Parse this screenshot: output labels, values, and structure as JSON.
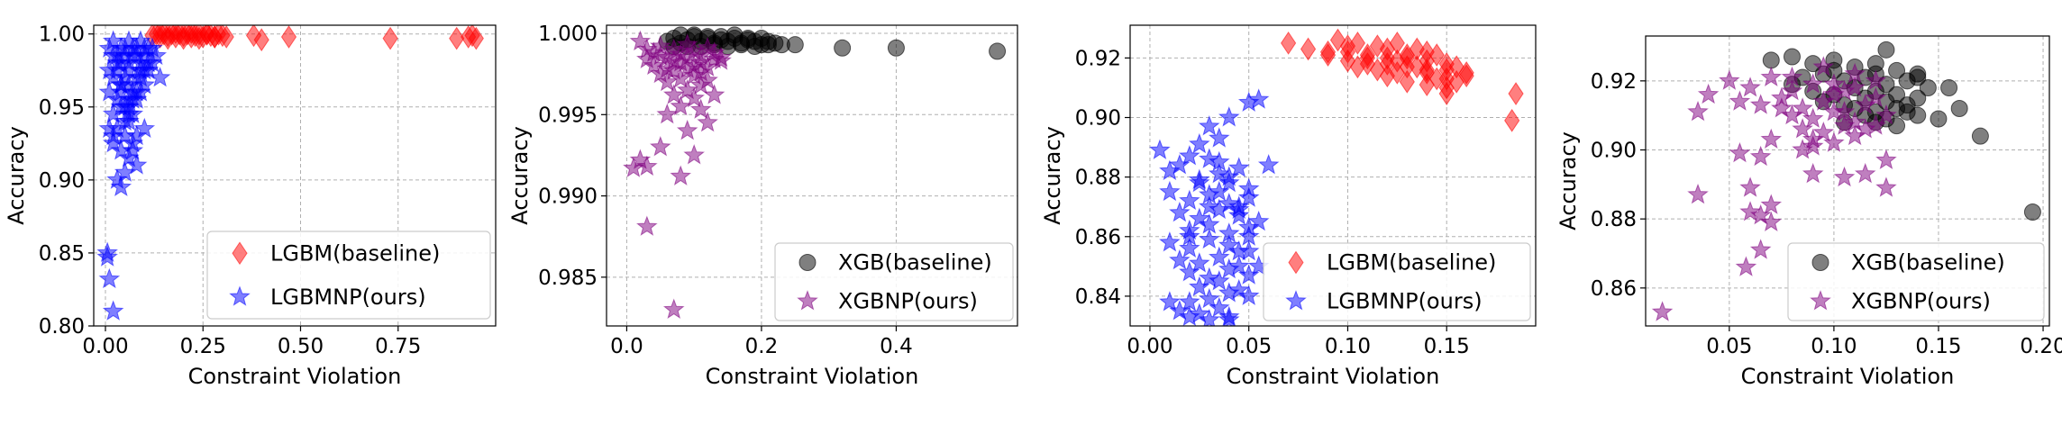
{
  "chart_data": [
    {
      "type": "scatter",
      "xlabel": "Constraint Violation",
      "ylabel": "Accuracy",
      "xlim": [
        -0.03,
        1.0
      ],
      "ylim": [
        0.8,
        1.006
      ],
      "xticks": [
        0.0,
        0.25,
        0.5,
        0.75
      ],
      "xtick_labels": [
        "0.00",
        "0.25",
        "0.50",
        "0.75"
      ],
      "yticks": [
        0.8,
        0.85,
        0.9,
        0.95,
        1.0
      ],
      "ytick_labels": [
        "0.80",
        "0.85",
        "0.90",
        "0.95",
        "1.00"
      ],
      "grid": true,
      "legend": "bottom-right",
      "series": [
        {
          "name": "LGBM(baseline)",
          "marker": "diamond",
          "color": "#ff0000",
          "x": [
            0.12,
            0.13,
            0.14,
            0.15,
            0.16,
            0.17,
            0.18,
            0.19,
            0.2,
            0.21,
            0.22,
            0.23,
            0.24,
            0.25,
            0.26,
            0.27,
            0.28,
            0.29,
            0.3,
            0.31,
            0.14,
            0.18,
            0.22,
            0.26,
            0.16,
            0.2,
            0.24,
            0.28,
            0.38,
            0.4,
            0.47,
            0.73,
            0.9,
            0.93,
            0.94,
            0.95
          ],
          "y": [
            0.999,
            1.0,
            0.998,
            1.0,
            0.999,
            1.0,
            0.998,
            1.0,
            0.999,
            1.0,
            0.998,
            0.999,
            1.0,
            0.998,
            1.0,
            0.999,
            0.998,
            1.0,
            0.999,
            0.998,
            1.001,
            1.001,
            1.001,
            1.0,
            0.997,
            0.997,
            0.997,
            0.998,
            0.999,
            0.996,
            0.998,
            0.997,
            0.997,
            0.998,
            0.999,
            0.997
          ]
        },
        {
          "name": "LGBMNP(ours)",
          "marker": "star",
          "color": "#0000ff",
          "x": [
            0.01,
            0.02,
            0.03,
            0.04,
            0.05,
            0.06,
            0.07,
            0.08,
            0.09,
            0.1,
            0.11,
            0.12,
            0.02,
            0.03,
            0.04,
            0.05,
            0.06,
            0.07,
            0.08,
            0.09,
            0.1,
            0.11,
            0.03,
            0.04,
            0.05,
            0.06,
            0.07,
            0.08,
            0.09,
            0.1,
            0.02,
            0.04,
            0.06,
            0.08,
            0.1,
            0.12,
            0.01,
            0.03,
            0.05,
            0.07,
            0.09,
            0.11,
            0.02,
            0.04,
            0.06,
            0.08,
            0.03,
            0.05,
            0.07,
            0.01,
            0.02,
            0.04,
            0.06,
            0.05,
            0.07,
            0.03,
            0.04,
            0.08,
            0.1,
            0.13,
            0.14,
            0.06,
            0.08,
            0.05,
            0.07,
            0.04,
            0.06,
            0.01,
            0.02,
            0.06,
            0.09,
            0.005,
            0.005,
            0.01,
            0.02
          ],
          "y": [
            0.99,
            0.995,
            0.985,
            0.98,
            0.99,
            0.975,
            0.985,
            0.99,
            0.98,
            0.985,
            0.975,
            0.99,
            0.97,
            0.975,
            0.965,
            0.97,
            0.98,
            0.96,
            0.97,
            0.975,
            0.965,
            0.98,
            0.955,
            0.96,
            0.95,
            0.965,
            0.955,
            0.96,
            0.97,
            0.975,
            0.985,
            0.99,
            0.995,
            0.985,
            0.99,
            0.98,
            0.975,
            0.98,
            0.985,
            0.99,
            0.995,
            0.99,
            0.945,
            0.95,
            0.94,
            0.955,
            0.935,
            0.93,
            0.945,
            0.96,
            0.925,
            0.92,
            0.915,
            0.94,
            0.925,
            0.9,
            0.895,
            0.91,
            0.935,
            0.985,
            0.97,
            0.95,
            0.93,
            0.905,
            0.92,
            0.965,
            0.945,
            0.935,
            0.93,
            0.955,
            0.96,
            0.85,
            0.847,
            0.832,
            0.81
          ]
        }
      ]
    },
    {
      "type": "scatter",
      "xlabel": "Constraint Violation",
      "ylabel": "Accuracy",
      "xlim": [
        -0.03,
        0.58
      ],
      "ylim": [
        0.982,
        1.0005
      ],
      "xticks": [
        0.0,
        0.2,
        0.4
      ],
      "xtick_labels": [
        "0.0",
        "0.2",
        "0.4"
      ],
      "yticks": [
        0.985,
        0.99,
        0.995,
        1.0
      ],
      "ytick_labels": [
        "0.985",
        "0.990",
        "0.995",
        "1.000"
      ],
      "grid": true,
      "legend": "bottom-right",
      "series": [
        {
          "name": "XGB(baseline)",
          "marker": "circle",
          "color": "#000000",
          "x": [
            0.06,
            0.07,
            0.08,
            0.09,
            0.1,
            0.11,
            0.12,
            0.13,
            0.14,
            0.15,
            0.16,
            0.17,
            0.18,
            0.19,
            0.2,
            0.21,
            0.22,
            0.23,
            0.08,
            0.1,
            0.12,
            0.14,
            0.16,
            0.18,
            0.2,
            0.07,
            0.09,
            0.11,
            0.13,
            0.15,
            0.17,
            0.19,
            0.21,
            0.25,
            0.32,
            0.4,
            0.55
          ],
          "y": [
            0.9995,
            0.9997,
            0.9994,
            0.9996,
            0.9998,
            0.9995,
            0.9997,
            0.9994,
            0.9996,
            0.9995,
            0.9997,
            0.9994,
            0.9996,
            0.9995,
            0.9993,
            0.9995,
            0.9994,
            0.9993,
            0.9999,
            0.9999,
            0.9998,
            0.9998,
            0.9999,
            0.9997,
            0.9997,
            0.9992,
            0.9992,
            0.9992,
            0.9993,
            0.9992,
            0.9993,
            0.9992,
            0.9993,
            0.9993,
            0.9991,
            0.9991,
            0.9989
          ]
        },
        {
          "name": "XGBNP(ours)",
          "marker": "star",
          "color": "#800080",
          "x": [
            0.02,
            0.03,
            0.04,
            0.05,
            0.06,
            0.07,
            0.08,
            0.09,
            0.1,
            0.11,
            0.12,
            0.13,
            0.14,
            0.03,
            0.05,
            0.07,
            0.09,
            0.11,
            0.13,
            0.04,
            0.06,
            0.08,
            0.1,
            0.12,
            0.14,
            0.05,
            0.07,
            0.09,
            0.11,
            0.06,
            0.08,
            0.1,
            0.12,
            0.07,
            0.09,
            0.11,
            0.1,
            0.13,
            0.08,
            0.06,
            0.12,
            0.11,
            0.09,
            0.05,
            0.1,
            0.02,
            0.03,
            0.08,
            0.01,
            0.03,
            0.07
          ],
          "y": [
            0.9995,
            0.999,
            0.9988,
            0.9992,
            0.9985,
            0.999,
            0.9987,
            0.9993,
            0.9989,
            0.9986,
            0.9991,
            0.9988,
            0.9985,
            0.9984,
            0.9986,
            0.9983,
            0.9985,
            0.9982,
            0.9984,
            0.998,
            0.9978,
            0.9982,
            0.998,
            0.9979,
            0.9983,
            0.9975,
            0.9977,
            0.9978,
            0.9976,
            0.997,
            0.9972,
            0.9974,
            0.9971,
            0.9962,
            0.9965,
            0.9968,
            0.996,
            0.9962,
            0.9955,
            0.995,
            0.9945,
            0.9953,
            0.994,
            0.993,
            0.9925,
            0.9922,
            0.9918,
            0.9912,
            0.9917,
            0.9881,
            0.983
          ]
        }
      ]
    },
    {
      "type": "scatter",
      "xlabel": "Constraint Violation",
      "ylabel": "Accuracy",
      "xlim": [
        -0.01,
        0.195
      ],
      "ylim": [
        0.83,
        0.931
      ],
      "xticks": [
        0.0,
        0.05,
        0.1,
        0.15
      ],
      "xtick_labels": [
        "0.00",
        "0.05",
        "0.10",
        "0.15"
      ],
      "yticks": [
        0.84,
        0.86,
        0.88,
        0.9,
        0.92
      ],
      "ytick_labels": [
        "0.84",
        "0.86",
        "0.88",
        "0.90",
        "0.92"
      ],
      "grid": true,
      "legend": "bottom-right",
      "series": [
        {
          "name": "LGBM(baseline)",
          "marker": "diamond",
          "color": "#ff0000",
          "x": [
            0.07,
            0.08,
            0.09,
            0.1,
            0.11,
            0.12,
            0.13,
            0.14,
            0.15,
            0.16,
            0.095,
            0.105,
            0.115,
            0.125,
            0.135,
            0.145,
            0.155,
            0.1,
            0.11,
            0.12,
            0.13,
            0.14,
            0.15,
            0.09,
            0.1,
            0.11,
            0.12,
            0.13,
            0.14,
            0.15,
            0.115,
            0.125,
            0.135,
            0.145,
            0.155,
            0.12,
            0.13,
            0.14,
            0.15,
            0.16,
            0.105,
            0.125,
            0.14,
            0.15,
            0.185,
            0.183
          ],
          "y": [
            0.925,
            0.923,
            0.922,
            0.924,
            0.921,
            0.923,
            0.92,
            0.922,
            0.918,
            0.915,
            0.926,
            0.925,
            0.924,
            0.925,
            0.923,
            0.921,
            0.917,
            0.919,
            0.918,
            0.92,
            0.917,
            0.919,
            0.916,
            0.921,
            0.922,
            0.92,
            0.918,
            0.921,
            0.916,
            0.913,
            0.916,
            0.915,
            0.917,
            0.913,
            0.912,
            0.914,
            0.912,
            0.915,
            0.91,
            0.914,
            0.917,
            0.919,
            0.911,
            0.908,
            0.908,
            0.899
          ]
        },
        {
          "name": "LGBMNP(ours)",
          "marker": "star",
          "color": "#0000ff",
          "x": [
            0.005,
            0.01,
            0.015,
            0.02,
            0.025,
            0.03,
            0.035,
            0.04,
            0.045,
            0.05,
            0.01,
            0.02,
            0.03,
            0.04,
            0.05,
            0.015,
            0.025,
            0.035,
            0.045,
            0.055,
            0.02,
            0.03,
            0.04,
            0.05,
            0.01,
            0.02,
            0.03,
            0.04,
            0.05,
            0.015,
            0.025,
            0.035,
            0.045,
            0.02,
            0.03,
            0.04,
            0.05,
            0.025,
            0.035,
            0.045,
            0.03,
            0.04,
            0.02,
            0.035,
            0.05,
            0.015,
            0.025,
            0.04,
            0.055,
            0.06,
            0.01,
            0.02,
            0.03,
            0.04,
            0.045,
            0.035,
            0.025,
            0.03,
            0.05,
            0.04,
            0.055,
            0.02,
            0.03,
            0.035,
            0.04,
            0.045,
            0.05,
            0.025,
            0.035,
            0.045
          ],
          "y": [
            0.889,
            0.882,
            0.884,
            0.887,
            0.879,
            0.886,
            0.881,
            0.878,
            0.883,
            0.876,
            0.875,
            0.872,
            0.874,
            0.871,
            0.873,
            0.868,
            0.866,
            0.869,
            0.867,
            0.865,
            0.862,
            0.864,
            0.861,
            0.863,
            0.858,
            0.856,
            0.859,
            0.857,
            0.855,
            0.852,
            0.851,
            0.853,
            0.85,
            0.848,
            0.846,
            0.849,
            0.847,
            0.843,
            0.845,
            0.842,
            0.839,
            0.841,
            0.838,
            0.836,
            0.84,
            0.835,
            0.834,
            0.833,
            0.85,
            0.884,
            0.838,
            0.833,
            0.832,
            0.832,
            0.869,
            0.893,
            0.891,
            0.897,
            0.905,
            0.9,
            0.906,
            0.86,
            0.87,
            0.875,
            0.88,
            0.855,
            0.86,
            0.878,
            0.885,
            0.87
          ]
        }
      ]
    },
    {
      "type": "scatter",
      "xlabel": "Constraint Violation",
      "ylabel": "Accuracy",
      "xlim": [
        0.01,
        0.203
      ],
      "ylim": [
        0.849,
        0.933
      ],
      "xticks": [
        0.05,
        0.1,
        0.15,
        0.2
      ],
      "xtick_labels": [
        "0.05",
        "0.10",
        "0.15",
        "0.20"
      ],
      "yticks": [
        0.86,
        0.88,
        0.9,
        0.92
      ],
      "ytick_labels": [
        "0.86",
        "0.88",
        "0.90",
        "0.92"
      ],
      "grid": true,
      "legend": "bottom-right",
      "series": [
        {
          "name": "XGB(baseline)",
          "marker": "circle",
          "color": "#000000",
          "x": [
            0.07,
            0.08,
            0.09,
            0.1,
            0.11,
            0.12,
            0.13,
            0.14,
            0.085,
            0.095,
            0.105,
            0.115,
            0.125,
            0.135,
            0.145,
            0.09,
            0.1,
            0.11,
            0.12,
            0.13,
            0.14,
            0.08,
            0.1,
            0.12,
            0.14,
            0.095,
            0.105,
            0.115,
            0.125,
            0.135,
            0.11,
            0.12,
            0.13,
            0.14,
            0.15,
            0.105,
            0.115,
            0.125,
            0.135,
            0.12,
            0.13,
            0.155,
            0.16,
            0.17,
            0.125,
            0.195
          ],
          "y": [
            0.926,
            0.927,
            0.925,
            0.926,
            0.924,
            0.925,
            0.923,
            0.922,
            0.921,
            0.922,
            0.92,
            0.921,
            0.919,
            0.92,
            0.918,
            0.917,
            0.916,
            0.918,
            0.917,
            0.916,
            0.915,
            0.919,
            0.923,
            0.922,
            0.921,
            0.914,
            0.913,
            0.915,
            0.914,
            0.913,
            0.912,
            0.911,
            0.912,
            0.91,
            0.909,
            0.908,
            0.91,
            0.909,
            0.911,
            0.908,
            0.907,
            0.918,
            0.912,
            0.904,
            0.929,
            0.882
          ]
        },
        {
          "name": "XGBNP(ours)",
          "marker": "star",
          "color": "#800080",
          "x": [
            0.05,
            0.06,
            0.07,
            0.08,
            0.09,
            0.1,
            0.11,
            0.12,
            0.055,
            0.065,
            0.075,
            0.085,
            0.095,
            0.105,
            0.115,
            0.125,
            0.08,
            0.09,
            0.1,
            0.11,
            0.12,
            0.085,
            0.095,
            0.105,
            0.115,
            0.09,
            0.1,
            0.11,
            0.075,
            0.08,
            0.095,
            0.1,
            0.105,
            0.11,
            0.12,
            0.04,
            0.035,
            0.055,
            0.065,
            0.07,
            0.085,
            0.09,
            0.115,
            0.125,
            0.06,
            0.07,
            0.035,
            0.065,
            0.06,
            0.07,
            0.09,
            0.105,
            0.125,
            0.065,
            0.058,
            0.018
          ],
          "y": [
            0.92,
            0.918,
            0.921,
            0.917,
            0.919,
            0.916,
            0.918,
            0.915,
            0.914,
            0.913,
            0.915,
            0.912,
            0.914,
            0.911,
            0.913,
            0.91,
            0.91,
            0.909,
            0.911,
            0.908,
            0.907,
            0.906,
            0.905,
            0.907,
            0.906,
            0.903,
            0.902,
            0.904,
            0.912,
            0.921,
            0.924,
            0.919,
            0.917,
            0.922,
            0.92,
            0.916,
            0.911,
            0.899,
            0.898,
            0.903,
            0.9,
            0.901,
            0.893,
            0.897,
            0.889,
            0.884,
            0.887,
            0.881,
            0.882,
            0.879,
            0.893,
            0.892,
            0.889,
            0.871,
            0.866,
            0.853
          ]
        }
      ]
    }
  ]
}
